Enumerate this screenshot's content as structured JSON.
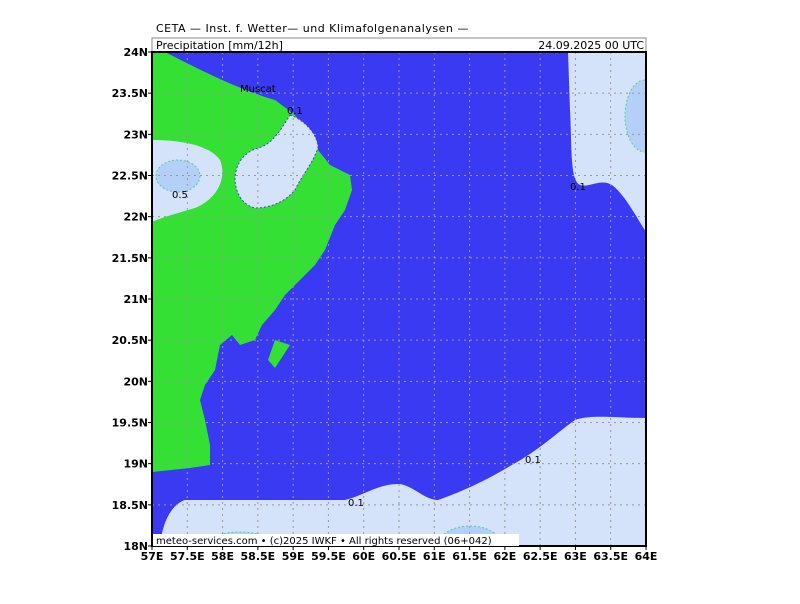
{
  "header": "CETA — Inst. f. Wetter— und Klimafolgenanalysen —",
  "title": "Precipitation [mm/12h]",
  "date": "24.09.2025 00 UTC",
  "lat_labels": [
    "18N",
    "18.5N",
    "19N",
    "19.5N",
    "20N",
    "20.5N",
    "21N",
    "21.5N",
    "22N",
    "22.5N",
    "23N",
    "23.5N",
    "24N"
  ],
  "lon_labels": [
    "57E",
    "57.5E",
    "58E",
    "58.5E",
    "59E",
    "59.5E",
    "60E",
    "60.5E",
    "61E",
    "61.5E",
    "62E",
    "62.5E",
    "63E",
    "63.5E",
    "64E"
  ],
  "place": "Muscat",
  "contour_labels": [
    "0.1",
    "0.5",
    "0.1",
    "0.1",
    "0.1"
  ],
  "footer": "meteo-services.com • (c)2025 IWKF • All rights reserved (06+042)"
}
